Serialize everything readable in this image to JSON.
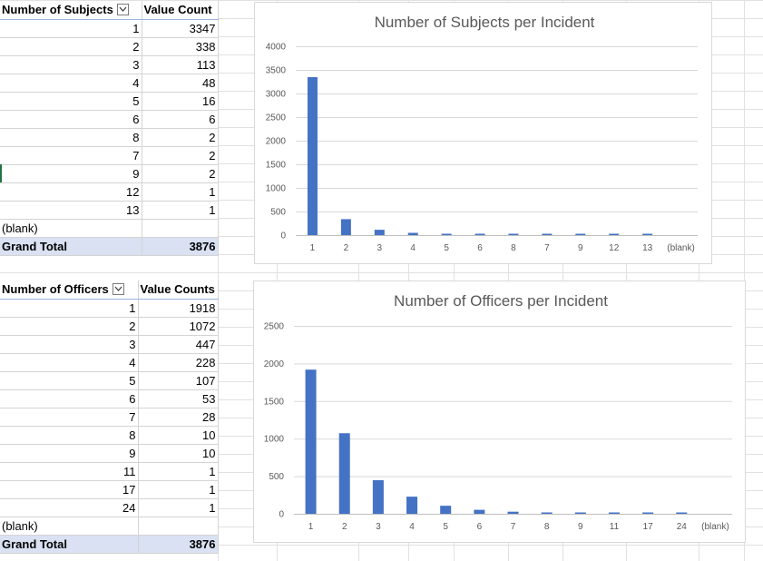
{
  "table1": {
    "header": [
      "Number of Subjects",
      "Value Count"
    ],
    "rows": [
      [
        "1",
        "3347"
      ],
      [
        "2",
        "338"
      ],
      [
        "3",
        "113"
      ],
      [
        "4",
        "48"
      ],
      [
        "5",
        "16"
      ],
      [
        "6",
        "6"
      ],
      [
        "8",
        "2"
      ],
      [
        "7",
        "2"
      ],
      [
        "9",
        "2"
      ],
      [
        "12",
        "1"
      ],
      [
        "13",
        "1"
      ],
      [
        "(blank)",
        ""
      ]
    ],
    "total_label": "Grand Total",
    "total_value": "3876"
  },
  "table2": {
    "header": [
      "Number of Officers",
      "Value Counts"
    ],
    "rows": [
      [
        "1",
        "1918"
      ],
      [
        "2",
        "1072"
      ],
      [
        "3",
        "447"
      ],
      [
        "4",
        "228"
      ],
      [
        "5",
        "107"
      ],
      [
        "6",
        "53"
      ],
      [
        "7",
        "28"
      ],
      [
        "8",
        "10"
      ],
      [
        "9",
        "10"
      ],
      [
        "11",
        "1"
      ],
      [
        "17",
        "1"
      ],
      [
        "24",
        "1"
      ],
      [
        "(blank)",
        ""
      ]
    ],
    "total_label": "Grand Total",
    "total_value": "3876"
  },
  "chart_data": [
    {
      "type": "bar",
      "title": "Number of Subjects per Incident",
      "categories": [
        "1",
        "2",
        "3",
        "4",
        "5",
        "6",
        "8",
        "7",
        "9",
        "12",
        "13",
        "(blank)"
      ],
      "values": [
        3347,
        338,
        113,
        48,
        16,
        6,
        2,
        2,
        2,
        1,
        1,
        0
      ],
      "ylim": [
        0,
        4000
      ],
      "yticks": [
        0,
        500,
        1000,
        1500,
        2000,
        2500,
        3000,
        3500,
        4000
      ],
      "xlabel": "",
      "ylabel": "",
      "grid": true,
      "color": "#4472c4"
    },
    {
      "type": "bar",
      "title": "Number of Officers per Incident",
      "categories": [
        "1",
        "2",
        "3",
        "4",
        "5",
        "6",
        "7",
        "8",
        "9",
        "11",
        "17",
        "24",
        "(blank)"
      ],
      "values": [
        1918,
        1072,
        447,
        228,
        107,
        53,
        28,
        10,
        10,
        1,
        1,
        1,
        0
      ],
      "ylim": [
        0,
        2500
      ],
      "yticks": [
        0,
        500,
        1000,
        1500,
        2000,
        2500
      ],
      "xlabel": "",
      "ylabel": "",
      "grid": true,
      "color": "#4472c4"
    }
  ]
}
